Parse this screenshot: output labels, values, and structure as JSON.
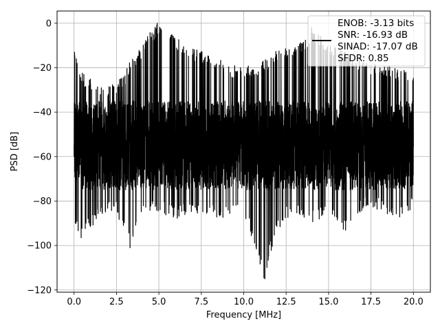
{
  "chart_data": {
    "type": "line",
    "title": "",
    "xlabel": "Frequency [MHz]",
    "ylabel": "PSD [dB]",
    "xlim": [
      -1,
      21
    ],
    "ylim": [
      -121,
      5.5
    ],
    "x_ticks": [
      0.0,
      2.5,
      5.0,
      7.5,
      10.0,
      12.5,
      15.0,
      17.5,
      20.0
    ],
    "x_tick_labels": [
      "0.0",
      "2.5",
      "5.0",
      "7.5",
      "10.0",
      "12.5",
      "15.0",
      "17.5",
      "20.0"
    ],
    "y_ticks": [
      0,
      -20,
      -40,
      -60,
      -80,
      -100,
      -120
    ],
    "y_tick_labels": [
      "0",
      "−20",
      "−40",
      "−60",
      "−80",
      "−100",
      "−120"
    ],
    "grid": true,
    "legend_position": "top-right",
    "series": [
      {
        "color": "#000000",
        "x_range": [
          0,
          20
        ],
        "noise_floor_band": [
          -75,
          -35
        ],
        "upper_envelope": [
          [
            0,
            -13
          ],
          [
            0.5,
            -22
          ],
          [
            1,
            -25
          ],
          [
            1.5,
            -28
          ],
          [
            2,
            -28
          ],
          [
            2.5,
            -27
          ],
          [
            3,
            -22
          ],
          [
            3.5,
            -14
          ],
          [
            4,
            -10
          ],
          [
            4.5,
            -4
          ],
          [
            4.9,
            0
          ],
          [
            5.4,
            -1
          ],
          [
            6,
            -6
          ],
          [
            6.5,
            -8
          ],
          [
            7,
            -11
          ],
          [
            7.5,
            -12
          ],
          [
            8,
            -14
          ],
          [
            9,
            -18
          ],
          [
            10,
            -20
          ],
          [
            11,
            -17
          ],
          [
            12,
            -12
          ],
          [
            13,
            -10
          ],
          [
            13.5,
            -8
          ],
          [
            14,
            -2
          ],
          [
            15,
            -8
          ],
          [
            16,
            -13
          ],
          [
            17,
            -16
          ],
          [
            18,
            -19
          ],
          [
            19,
            -20
          ],
          [
            20,
            -22
          ]
        ],
        "lower_envelope": [
          [
            0,
            -94
          ],
          [
            0.5,
            -97
          ],
          [
            1,
            -92
          ],
          [
            1.5,
            -88
          ],
          [
            2,
            -86
          ],
          [
            2.5,
            -86
          ],
          [
            3.3,
            -101
          ],
          [
            4,
            -88
          ],
          [
            4.5,
            -86
          ],
          [
            5,
            -85
          ],
          [
            6,
            -88
          ],
          [
            7,
            -86
          ],
          [
            8,
            -87
          ],
          [
            9,
            -88
          ],
          [
            10,
            -85
          ],
          [
            11.2,
            -115
          ],
          [
            11.8,
            -97
          ],
          [
            12.5,
            -88
          ],
          [
            13,
            -86
          ],
          [
            14,
            -90
          ],
          [
            15,
            -86
          ],
          [
            16,
            -94
          ],
          [
            17,
            -84
          ],
          [
            18,
            -84
          ],
          [
            19,
            -88
          ],
          [
            20,
            -84
          ]
        ],
        "notable_points": [
          {
            "x": 0.03,
            "y": -13
          },
          {
            "x": 4.9,
            "y": 0
          },
          {
            "x": 14.0,
            "y": -2
          },
          {
            "x": 3.3,
            "y": -101
          },
          {
            "x": 11.25,
            "y": -115
          }
        ]
      }
    ],
    "legend": {
      "entries": [
        "ENOB: -3.13 bits",
        "SNR: -16.93 dB",
        "SINAD: -17.07 dB",
        "SFDR: 0.85"
      ]
    }
  }
}
